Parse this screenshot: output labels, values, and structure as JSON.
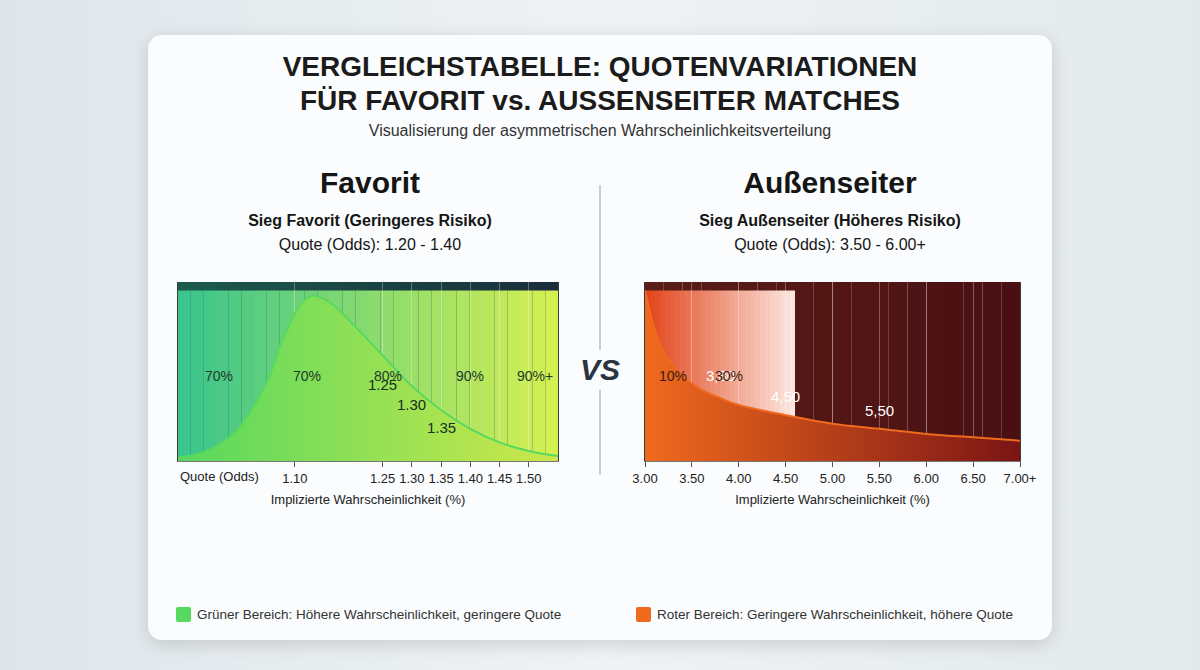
{
  "title_lines": [
    "VERGLEICHSTABELLE: QUOTENVARIATIONEN",
    "FÜR FAVORIT vs. AUSSENSEITER MATCHES"
  ],
  "subtitle": "Visualisierung der asymmetrischen Wahrscheinlichkeitsverteilung",
  "separator": "VS",
  "chart_data": [
    {
      "type": "area",
      "title": "Favorit",
      "subtitle": "Sieg Favorit (Geringeres Risiko)",
      "odds_text": "Quote (Odds): 1.20 - 1.40",
      "color": "#57d85f",
      "x": [
        0.9,
        0.95,
        1.0,
        1.05,
        1.08,
        1.11,
        1.13,
        1.16,
        1.2,
        1.25,
        1.3,
        1.35,
        1.4,
        1.45,
        1.5,
        1.55
      ],
      "values": [
        0.02,
        0.06,
        0.18,
        0.45,
        0.72,
        0.92,
        0.97,
        0.93,
        0.8,
        0.62,
        0.44,
        0.3,
        0.19,
        0.11,
        0.06,
        0.03
      ],
      "xlim": [
        0.9,
        1.55
      ],
      "xticks": [
        {
          "value": 1.1,
          "label": "1.10"
        },
        1.25,
        {
          "value": 1.3,
          "label": "1.30"
        },
        1.35,
        {
          "value": 1.4,
          "label": "1.40"
        },
        1.45,
        {
          "value": 1.5,
          "label": "1.50"
        }
      ],
      "ylim": [
        0,
        1.05
      ],
      "tick_labels": "x",
      "grid": true,
      "x_label": "Quote (Odds)",
      "xlabel": "Implizierte Wahrscheinlichkeit (%)",
      "annotations": [
        {
          "x": 1.25,
          "y": 0.45,
          "text": "1.25"
        },
        {
          "x": 1.3,
          "y": 0.33,
          "text": "1.30"
        },
        {
          "x": 1.35,
          "y": 0.2,
          "text": "1.35"
        }
      ],
      "probability_band": {
        "range": [
          0.9,
          1.55
        ],
        "x": [
          0.97,
          1.12,
          1.26,
          1.4,
          1.51
        ],
        "values": [
          70,
          70,
          80,
          90,
          90
        ],
        "value_labels": [
          "70%",
          "70%",
          "80%",
          "90%",
          "90%+"
        ]
      },
      "note": "Grüner Bereich: Höhere Wahrscheinlichkeit, geringere Quote"
    },
    {
      "type": "area",
      "title": "Außenseiter",
      "subtitle": "Sieg Außenseiter (Höheres Risiko)",
      "odds_text": "Quote (Odds): 3.50 - 6.00+",
      "color": "#f06a1e",
      "x": [
        3.0,
        3.1,
        3.2,
        3.4,
        3.6,
        3.8,
        4.0,
        4.5,
        5.0,
        5.5,
        6.0,
        6.5,
        7.0
      ],
      "values": [
        1.0,
        0.78,
        0.64,
        0.5,
        0.42,
        0.37,
        0.33,
        0.27,
        0.22,
        0.19,
        0.16,
        0.14,
        0.12
      ],
      "xlim": [
        3,
        7
      ],
      "xticks": [
        {
          "value": 3,
          "label": "3.00"
        },
        {
          "value": 3.5,
          "label": "3.50"
        },
        {
          "value": 4,
          "label": "4.00"
        },
        {
          "value": 4.5,
          "label": "4.50"
        },
        {
          "value": 5,
          "label": "5.00"
        },
        {
          "value": 5.5,
          "label": "5.50"
        },
        {
          "value": 6,
          "label": "6.00"
        },
        {
          "value": 6.5,
          "label": "6.50"
        },
        {
          "value": 7,
          "label": "7.00+"
        }
      ],
      "ylim": [
        0,
        1.05
      ],
      "tick_labels": "x",
      "grid": true,
      "xlabel": "Implizierte Wahrscheinlichkeit (%)",
      "annotations": [
        {
          "x": 3.8,
          "y": 0.5,
          "text": "3,80"
        },
        {
          "x": 4.5,
          "y": 0.38,
          "text": "4,50"
        },
        {
          "x": 5.5,
          "y": 0.3,
          "text": "5,50"
        }
      ],
      "probability_band": {
        "range": [
          3.0,
          4.6
        ],
        "x": [
          3.3,
          3.9
        ],
        "values": [
          10,
          30
        ],
        "value_labels": [
          "10%",
          "30%"
        ]
      },
      "note": "Roter Bereich: Geringere Wahrscheinlichkeit, höhere Quote"
    }
  ]
}
